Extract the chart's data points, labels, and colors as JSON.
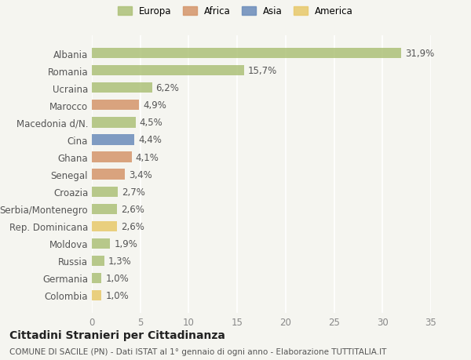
{
  "categories": [
    "Albania",
    "Romania",
    "Ucraina",
    "Marocco",
    "Macedonia d/N.",
    "Cina",
    "Ghana",
    "Senegal",
    "Croazia",
    "Serbia/Montenegro",
    "Rep. Dominicana",
    "Moldova",
    "Russia",
    "Germania",
    "Colombia"
  ],
  "values": [
    31.9,
    15.7,
    6.2,
    4.9,
    4.5,
    4.4,
    4.1,
    3.4,
    2.7,
    2.6,
    2.6,
    1.9,
    1.3,
    1.0,
    1.0
  ],
  "labels": [
    "31,9%",
    "15,7%",
    "6,2%",
    "4,9%",
    "4,5%",
    "4,4%",
    "4,1%",
    "3,4%",
    "2,7%",
    "2,6%",
    "2,6%",
    "1,9%",
    "1,3%",
    "1,0%",
    "1,0%"
  ],
  "colors": [
    "#adc178",
    "#adc178",
    "#adc178",
    "#d4956a",
    "#adc178",
    "#6b8cba",
    "#d4956a",
    "#d4956a",
    "#adc178",
    "#adc178",
    "#e8c96a",
    "#adc178",
    "#adc178",
    "#adc178",
    "#e8c96a"
  ],
  "legend_labels": [
    "Europa",
    "Africa",
    "Asia",
    "America"
  ],
  "legend_colors": [
    "#adc178",
    "#d4956a",
    "#6b8cba",
    "#e8c96a"
  ],
  "title": "Cittadini Stranieri per Cittadinanza",
  "subtitle": "COMUNE DI SACILE (PN) - Dati ISTAT al 1° gennaio di ogni anno - Elaborazione TUTTITALIA.IT",
  "xlim": [
    0,
    35
  ],
  "xticks": [
    0,
    5,
    10,
    15,
    20,
    25,
    30,
    35
  ],
  "bg_color": "#f5f5f0",
  "bar_height": 0.6,
  "label_fontsize": 8.5,
  "tick_fontsize": 8.5,
  "title_fontsize": 10,
  "subtitle_fontsize": 7.5,
  "grid_color": "#ffffff",
  "grid_linewidth": 1.2
}
